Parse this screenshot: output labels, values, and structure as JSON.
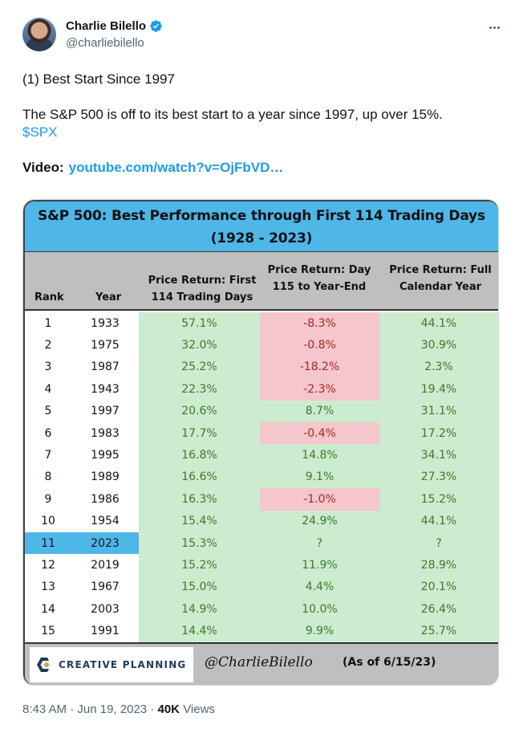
{
  "author": {
    "name": "Charlie Bilello",
    "handle": "@charliebilello",
    "verified": true,
    "verified_color": "#1d9bf0"
  },
  "icons": {
    "more": "more-horizontal-icon",
    "verified": "verified-badge-icon"
  },
  "tweet": {
    "line1": "(1) Best Start Since 1997",
    "line2": "The S&P 500 is off to its best start to a year since 1997, up over 15%.",
    "cashtag": "$SPX",
    "video_label": "Video:",
    "video_link": "youtube.com/watch?v=OjFbVD…"
  },
  "table": {
    "title_line1": "S&P 500: Best Performance through First 114 Trading Days",
    "title_line2": "(1928 - 2023)",
    "headers": {
      "rank": "Rank",
      "year": "Year",
      "col1_line1": "Price Return: First",
      "col1_line2": "114 Trading Days",
      "col2_line1": "Price Return: Day",
      "col2_line2": "115 to Year-End",
      "col3_line1": "Price Return: Full",
      "col3_line2": "Calendar  Year"
    },
    "rows": [
      {
        "rank": "1",
        "year": "1933",
        "first114": "57.1%",
        "rest": "-8.3%",
        "full": "44.1%",
        "rest_negative": true,
        "highlight": false
      },
      {
        "rank": "2",
        "year": "1975",
        "first114": "32.0%",
        "rest": "-0.8%",
        "full": "30.9%",
        "rest_negative": true,
        "highlight": false
      },
      {
        "rank": "3",
        "year": "1987",
        "first114": "25.2%",
        "rest": "-18.2%",
        "full": "2.3%",
        "rest_negative": true,
        "highlight": false
      },
      {
        "rank": "4",
        "year": "1943",
        "first114": "22.3%",
        "rest": "-2.3%",
        "full": "19.4%",
        "rest_negative": true,
        "highlight": false
      },
      {
        "rank": "5",
        "year": "1997",
        "first114": "20.6%",
        "rest": "8.7%",
        "full": "31.1%",
        "rest_negative": false,
        "highlight": false
      },
      {
        "rank": "6",
        "year": "1983",
        "first114": "17.7%",
        "rest": "-0.4%",
        "full": "17.2%",
        "rest_negative": true,
        "highlight": false
      },
      {
        "rank": "7",
        "year": "1995",
        "first114": "16.8%",
        "rest": "14.8%",
        "full": "34.1%",
        "rest_negative": false,
        "highlight": false
      },
      {
        "rank": "8",
        "year": "1989",
        "first114": "16.6%",
        "rest": "9.1%",
        "full": "27.3%",
        "rest_negative": false,
        "highlight": false
      },
      {
        "rank": "9",
        "year": "1986",
        "first114": "16.3%",
        "rest": "-1.0%",
        "full": "15.2%",
        "rest_negative": true,
        "highlight": false
      },
      {
        "rank": "10",
        "year": "1954",
        "first114": "15.4%",
        "rest": "24.9%",
        "full": "44.1%",
        "rest_negative": false,
        "highlight": false
      },
      {
        "rank": "11",
        "year": "2023",
        "first114": "15.3%",
        "rest": "?",
        "full": "?",
        "rest_negative": false,
        "highlight": true
      },
      {
        "rank": "12",
        "year": "2019",
        "first114": "15.2%",
        "rest": "11.9%",
        "full": "28.9%",
        "rest_negative": false,
        "highlight": false
      },
      {
        "rank": "13",
        "year": "1967",
        "first114": "15.0%",
        "rest": "4.4%",
        "full": "20.1%",
        "rest_negative": false,
        "highlight": false
      },
      {
        "rank": "14",
        "year": "2003",
        "first114": "14.9%",
        "rest": "10.0%",
        "full": "26.4%",
        "rest_negative": false,
        "highlight": false
      },
      {
        "rank": "15",
        "year": "1991",
        "first114": "14.4%",
        "rest": "9.9%",
        "full": "25.7%",
        "rest_negative": false,
        "highlight": false
      }
    ],
    "footer": {
      "logo_text": "CREATIVE PLANNING",
      "handle": "@CharlieBilello",
      "as_of": "(As of 6/15/23)"
    },
    "colors": {
      "title_bg": "#4fb6e8",
      "header_bg": "#bfbfbf",
      "positive_bg": "#cdebcf",
      "positive_text": "#3a7a2a",
      "negative_bg": "#f5c6cc",
      "negative_text": "#a8262b",
      "highlight_bg": "#4fb6e8"
    }
  },
  "meta": {
    "time": "8:43 AM",
    "date": "Jun 19, 2023",
    "views_count": "40K",
    "views_label": "Views"
  }
}
